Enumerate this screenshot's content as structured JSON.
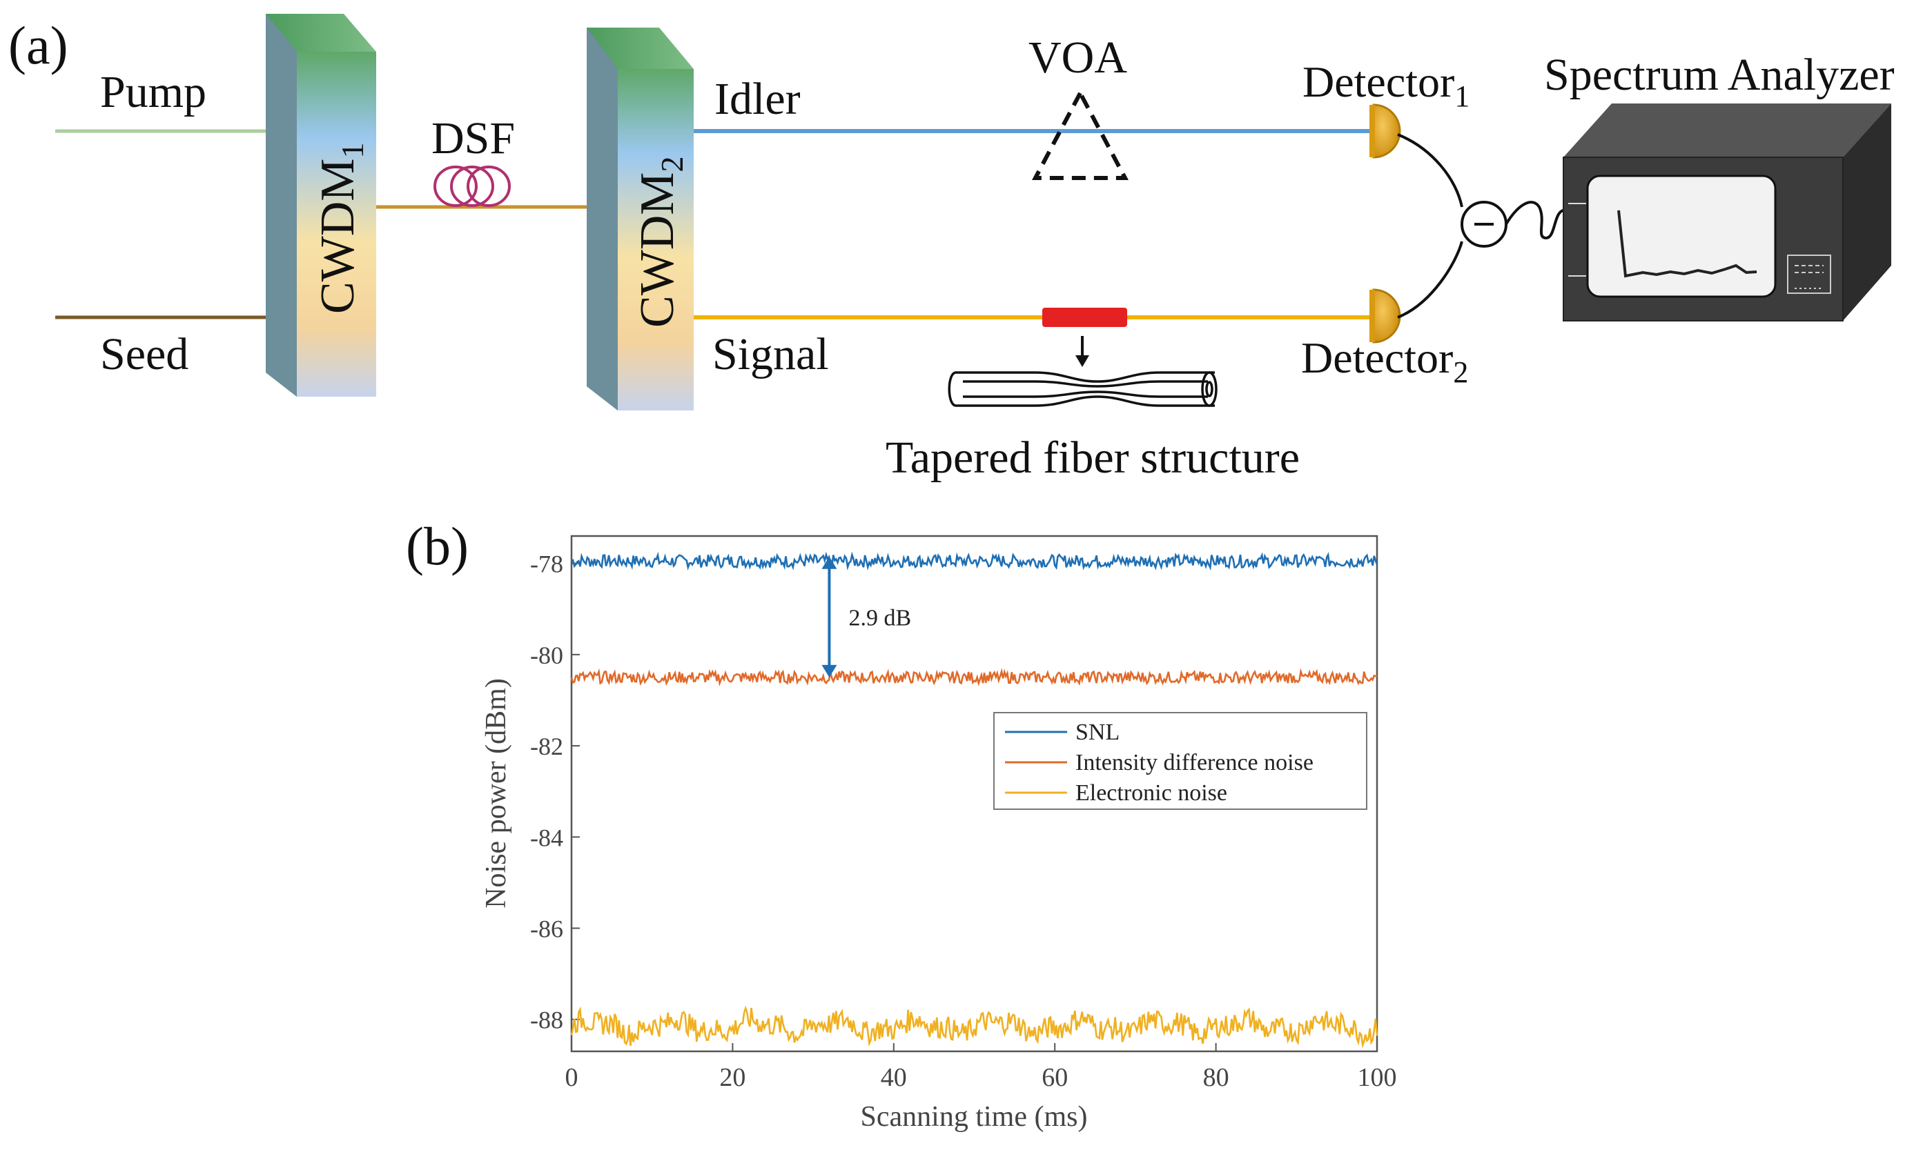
{
  "panel_a": {
    "label": "(a)",
    "pump_label": "Pump",
    "seed_label": "Seed",
    "dsf_label": "DSF",
    "cwdm1_label": "CWDM",
    "cwdm1_sub": "1",
    "cwdm2_label": "CWDM",
    "cwdm2_sub": "2",
    "idler_label": "Idler",
    "signal_label": "Signal",
    "voa_label": "VOA",
    "detector1_label": "Detector",
    "detector1_sub": "1",
    "detector2_label": "Detector",
    "detector2_sub": "2",
    "spectrum_label": "Spectrum Analyzer",
    "tapered_label": "Tapered fiber structure",
    "colors": {
      "pump": "#a8cf9c",
      "seed": "#7a5a2a",
      "dsf_fiber": "#c8922e",
      "dsf_coil": "#b0306e",
      "idler": "#5b9bd5",
      "signal": "#f0b400",
      "taper": "#e52222",
      "detector": "#e0a20c"
    }
  },
  "panel_b": {
    "label": "(b)",
    "annotation": "2.9 dB",
    "chart_data": {
      "type": "line",
      "xlabel": "Scanning time (ms)",
      "ylabel": "Noise power (dBm)",
      "xlim": [
        0,
        100
      ],
      "ylim": [
        -88.7,
        -77.4
      ],
      "xticks": [
        0,
        20,
        40,
        60,
        80,
        100
      ],
      "yticks": [
        -78,
        -80,
        -82,
        -84,
        -86,
        -88
      ],
      "xtick_labels": [
        "0",
        "20",
        "40",
        "60",
        "80",
        "100"
      ],
      "ytick_labels": [
        "-78",
        "-80",
        "-82",
        "-84",
        "-86",
        "-88"
      ],
      "legend_position": "center-right",
      "series": [
        {
          "name": "SNL",
          "color": "#1f6fb4",
          "mean": -77.95,
          "amplitude": 0.14
        },
        {
          "name": "Intensity difference noise",
          "color": "#e06a2a",
          "mean": -80.5,
          "amplitude": 0.13
        },
        {
          "name": "Electronic noise",
          "color": "#f0b020",
          "mean": -88.15,
          "amplitude": 0.25
        }
      ],
      "annotation": {
        "text": "2.9 dB",
        "x": 32,
        "y_from": -77.85,
        "y_to": -80.5
      }
    }
  }
}
